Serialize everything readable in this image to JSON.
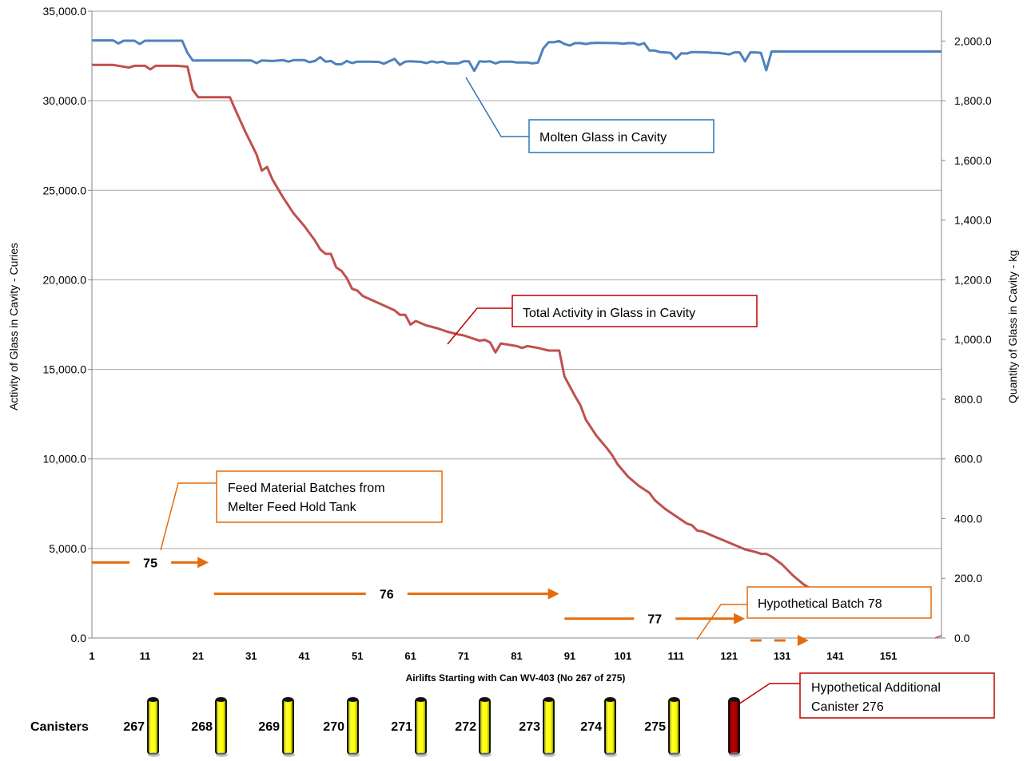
{
  "chart_data": {
    "type": "line",
    "title": "",
    "xlabel": "Airlifts Starting with Can WV-403 (No 267 of 275)",
    "ylabel": "Activity of Glass in Cavity - Curies",
    "y2label": "Quantity of Glass in Cavity - kg",
    "x_ticks": [
      "1",
      "11",
      "21",
      "31",
      "41",
      "51",
      "61",
      "71",
      "81",
      "91",
      "101",
      "111",
      "121",
      "131",
      "141",
      "151"
    ],
    "y_ticks": [
      "0.0",
      "5,000.0",
      "10,000.0",
      "15,000.0",
      "20,000.0",
      "25,000.0",
      "30,000.0",
      "35,000.0"
    ],
    "y2_ticks": [
      "0.0",
      "200.0",
      "400.0",
      "600.0",
      "800.0",
      "1,000.0",
      "1,200.0",
      "1,400.0",
      "1,600.0",
      "1,800.0",
      "2,000.0"
    ],
    "ylim": [
      0,
      35000
    ],
    "y2lim": [
      0,
      2100
    ],
    "xlim": [
      1,
      161
    ],
    "grid": true,
    "series": [
      {
        "name": "Total Activity in Glass in Cavity",
        "axis": "left",
        "color": "#C0504D",
        "points": [
          [
            1,
            32000
          ],
          [
            5,
            32000
          ],
          [
            8,
            31850
          ],
          [
            9,
            31950
          ],
          [
            11,
            31950
          ],
          [
            12,
            31750
          ],
          [
            13,
            31950
          ],
          [
            15,
            31950
          ],
          [
            17,
            31950
          ],
          [
            19,
            31900
          ],
          [
            20,
            30600
          ],
          [
            21,
            30200
          ],
          [
            27,
            30200
          ],
          [
            28,
            29500
          ],
          [
            30,
            28200
          ],
          [
            32,
            27000
          ],
          [
            33,
            26100
          ],
          [
            34,
            26300
          ],
          [
            35,
            25600
          ],
          [
            37,
            24600
          ],
          [
            39,
            23700
          ],
          [
            41,
            23000
          ],
          [
            43,
            22200
          ],
          [
            44,
            21700
          ],
          [
            45,
            21450
          ],
          [
            46,
            21450
          ],
          [
            47,
            20700
          ],
          [
            48,
            20500
          ],
          [
            49,
            20100
          ],
          [
            50,
            19500
          ],
          [
            51,
            19400
          ],
          [
            52,
            19100
          ],
          [
            55,
            18700
          ],
          [
            58,
            18300
          ],
          [
            59,
            18050
          ],
          [
            60,
            18050
          ],
          [
            61,
            17500
          ],
          [
            62,
            17700
          ],
          [
            64,
            17450
          ],
          [
            66,
            17300
          ],
          [
            68,
            17100
          ],
          [
            70,
            16950
          ],
          [
            71,
            16900
          ],
          [
            73,
            16700
          ],
          [
            74,
            16600
          ],
          [
            75,
            16650
          ],
          [
            76,
            16500
          ],
          [
            77,
            15950
          ],
          [
            78,
            16450
          ],
          [
            79,
            16400
          ],
          [
            81,
            16300
          ],
          [
            82,
            16200
          ],
          [
            83,
            16300
          ],
          [
            85,
            16200
          ],
          [
            87,
            16050
          ],
          [
            89,
            16050
          ],
          [
            90,
            14600
          ],
          [
            92,
            13500
          ],
          [
            93,
            13000
          ],
          [
            94,
            12200
          ],
          [
            96,
            11300
          ],
          [
            98,
            10600
          ],
          [
            99,
            10200
          ],
          [
            100,
            9700
          ],
          [
            102,
            9000
          ],
          [
            104,
            8500
          ],
          [
            106,
            8100
          ],
          [
            107,
            7700
          ],
          [
            109,
            7200
          ],
          [
            111,
            6800
          ],
          [
            113,
            6400
          ],
          [
            114,
            6300
          ],
          [
            115,
            6000
          ],
          [
            116,
            5950
          ],
          [
            118,
            5700
          ],
          [
            120,
            5450
          ],
          [
            122,
            5200
          ],
          [
            124,
            4950
          ],
          [
            126,
            4800
          ],
          [
            127,
            4700
          ],
          [
            128,
            4700
          ],
          [
            129,
            4550
          ],
          [
            131,
            4100
          ],
          [
            133,
            3500
          ],
          [
            135,
            3000
          ],
          [
            137,
            2650
          ],
          [
            139,
            2300
          ],
          [
            140,
            2150
          ]
        ]
      },
      {
        "name": "Molten Glass in Cavity",
        "axis": "right",
        "color": "#4F81BD",
        "points": [
          [
            1,
            2002
          ],
          [
            5,
            2002
          ],
          [
            6,
            1992
          ],
          [
            7,
            2001
          ],
          [
            9,
            2001
          ],
          [
            10,
            1990
          ],
          [
            11,
            2001
          ],
          [
            18,
            2001
          ],
          [
            19,
            1960
          ],
          [
            20,
            1935
          ],
          [
            31,
            1935
          ],
          [
            32,
            1926
          ],
          [
            33,
            1935
          ],
          [
            35,
            1933
          ],
          [
            37,
            1936
          ],
          [
            38,
            1931
          ],
          [
            39,
            1936
          ],
          [
            41,
            1936
          ],
          [
            42,
            1929
          ],
          [
            43,
            1933
          ],
          [
            44,
            1946
          ],
          [
            45,
            1931
          ],
          [
            46,
            1933
          ],
          [
            47,
            1922
          ],
          [
            48,
            1922
          ],
          [
            49,
            1933
          ],
          [
            50,
            1926
          ],
          [
            51,
            1931
          ],
          [
            53,
            1931
          ],
          [
            55,
            1930
          ],
          [
            56,
            1924
          ],
          [
            57,
            1932
          ],
          [
            58,
            1940
          ],
          [
            59,
            1920
          ],
          [
            60,
            1931
          ],
          [
            61,
            1932
          ],
          [
            63,
            1930
          ],
          [
            64,
            1926
          ],
          [
            65,
            1932
          ],
          [
            66,
            1928
          ],
          [
            67,
            1931
          ],
          [
            68,
            1925
          ],
          [
            70,
            1925
          ],
          [
            71,
            1932
          ],
          [
            72,
            1932
          ],
          [
            73,
            1900
          ],
          [
            74,
            1932
          ],
          [
            75,
            1931
          ],
          [
            76,
            1932
          ],
          [
            77,
            1925
          ],
          [
            78,
            1931
          ],
          [
            80,
            1931
          ],
          [
            81,
            1928
          ],
          [
            83,
            1928
          ],
          [
            84,
            1925
          ],
          [
            85,
            1928
          ],
          [
            86,
            1975
          ],
          [
            87,
            1996
          ],
          [
            88,
            1996
          ],
          [
            89,
            2000
          ],
          [
            90,
            1990
          ],
          [
            91,
            1985
          ],
          [
            92,
            1993
          ],
          [
            93,
            1993
          ],
          [
            94,
            1990
          ],
          [
            95,
            1993
          ],
          [
            96,
            1994
          ],
          [
            100,
            1993
          ],
          [
            101,
            1991
          ],
          [
            102,
            1993
          ],
          [
            103,
            1993
          ],
          [
            104,
            1987
          ],
          [
            105,
            1993
          ],
          [
            106,
            1968
          ],
          [
            107,
            1968
          ],
          [
            108,
            1963
          ],
          [
            109,
            1962
          ],
          [
            110,
            1960
          ],
          [
            111,
            1940
          ],
          [
            112,
            1959
          ],
          [
            113,
            1958
          ],
          [
            114,
            1963
          ],
          [
            115,
            1963
          ],
          [
            117,
            1962
          ],
          [
            118,
            1960
          ],
          [
            119,
            1960
          ],
          [
            120,
            1958
          ],
          [
            121,
            1955
          ],
          [
            122,
            1962
          ],
          [
            123,
            1962
          ],
          [
            124,
            1932
          ],
          [
            125,
            1962
          ],
          [
            126,
            1962
          ],
          [
            127,
            1960
          ],
          [
            128,
            1902
          ],
          [
            129,
            1965
          ],
          [
            161,
            1965
          ]
        ]
      }
    ]
  },
  "callouts": {
    "molten_glass": "Molten Glass in Cavity",
    "total_activity": "Total Activity in Glass in Cavity",
    "feed_batches_line1": "Feed Material Batches from",
    "feed_batches_line2": "Melter Feed Hold Tank",
    "hypothetical_batch": "Hypothetical Batch 78",
    "hypothetical_canister_line1": "Hypothetical Additional",
    "hypothetical_canister_line2": "Canister 276"
  },
  "batches": [
    {
      "label": "75",
      "x_start": 1,
      "x_end": 23,
      "level_kg": 253
    },
    {
      "label": "76",
      "x_start": 24,
      "x_end": 89,
      "level_kg": 148
    },
    {
      "label": "77",
      "x_start": 90,
      "x_end": 124,
      "level_kg": 65
    },
    {
      "label": "",
      "x_start": 125,
      "x_end": 136,
      "level_kg": -8
    }
  ],
  "canisters": {
    "label": "Canisters",
    "items": [
      {
        "number": "267",
        "color": "#FFFF00"
      },
      {
        "number": "268",
        "color": "#FFFF00"
      },
      {
        "number": "269",
        "color": "#FFFF00"
      },
      {
        "number": "270",
        "color": "#FFFF00"
      },
      {
        "number": "271",
        "color": "#FFFF00"
      },
      {
        "number": "272",
        "color": "#FFFF00"
      },
      {
        "number": "273",
        "color": "#FFFF00"
      },
      {
        "number": "274",
        "color": "#FFFF00"
      },
      {
        "number": "275",
        "color": "#FFFF00"
      },
      {
        "number": "",
        "color": "#A00000"
      }
    ]
  },
  "colors": {
    "activity": "#C0504D",
    "glass": "#4F81BD",
    "batch_arrow": "#E46C0A",
    "callout_blue_border": "#2E75B6",
    "callout_red_border": "#C00000",
    "callout_orange_border": "#E46C0A",
    "grid": "#A6A6A6"
  }
}
